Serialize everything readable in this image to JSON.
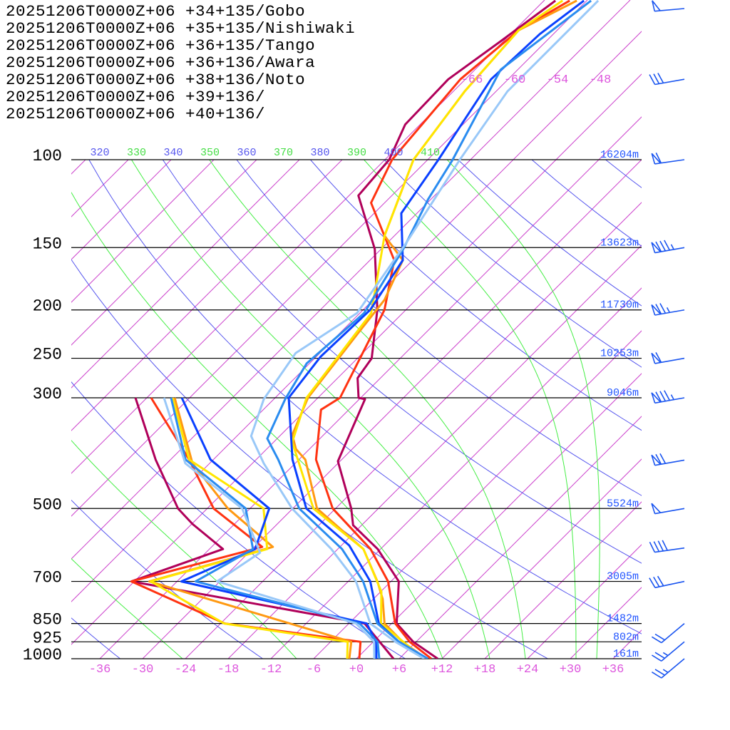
{
  "chart_data": {
    "type": "line",
    "subtype": "skew-T log-p sounding",
    "xlabel": "Temperature (°C)",
    "ylabel": "Pressure (hPa)",
    "xlim": [
      -40,
      40
    ],
    "ylim": [
      1000,
      48
    ],
    "pressure_levels": [
      {
        "p": 100,
        "label": "100",
        "height": "16204m"
      },
      {
        "p": 150,
        "label": "150",
        "height": "13623m"
      },
      {
        "p": 200,
        "label": "200",
        "height": "11730m"
      },
      {
        "p": 250,
        "label": "250",
        "height": "10253m"
      },
      {
        "p": 300,
        "label": "300",
        "height": "9046m"
      },
      {
        "p": 500,
        "label": "500",
        "height": "5524m"
      },
      {
        "p": 700,
        "label": "700",
        "height": "3005m"
      },
      {
        "p": 850,
        "label": "850",
        "height": "1482m"
      },
      {
        "p": 925,
        "label": "925",
        "height": "802m"
      },
      {
        "p": 1000,
        "label": "1000",
        "height": "161m"
      }
    ],
    "x_tick_labels": [
      {
        "t": -36,
        "label": "-36"
      },
      {
        "t": -30,
        "label": "-30"
      },
      {
        "t": -24,
        "label": "-24"
      },
      {
        "t": -18,
        "label": "-18"
      },
      {
        "t": -12,
        "label": "-12"
      },
      {
        "t": -6,
        "label": "-6"
      },
      {
        "t": 0,
        "label": "+0"
      },
      {
        "t": 6,
        "label": "+6"
      },
      {
        "t": 12,
        "label": "+12"
      },
      {
        "t": 18,
        "label": "+18"
      },
      {
        "t": 24,
        "label": "+24"
      },
      {
        "t": 30,
        "label": "+30"
      },
      {
        "t": 36,
        "label": "+36"
      }
    ],
    "isotherm_top_labels": [
      {
        "t": -66,
        "label": "-66"
      },
      {
        "t": -60,
        "label": "-60"
      },
      {
        "t": -54,
        "label": "-54"
      },
      {
        "t": -48,
        "label": "-48"
      }
    ],
    "theta_labels": [
      {
        "label": "320",
        "color": "#5555ee"
      },
      {
        "label": "330",
        "color": "#44dd44"
      },
      {
        "label": "340",
        "color": "#5555ee"
      },
      {
        "label": "350",
        "color": "#44dd44"
      },
      {
        "label": "360",
        "color": "#5555ee"
      },
      {
        "label": "370",
        "color": "#44dd44"
      },
      {
        "label": "380",
        "color": "#5555ee"
      },
      {
        "label": "390",
        "color": "#44dd44"
      },
      {
        "label": "400",
        "color": "#5555ee"
      },
      {
        "label": "410",
        "color": "#44dd44"
      }
    ],
    "dry_adiabats_K": [
      240,
      260,
      280,
      300,
      320,
      340,
      360,
      380,
      400,
      420,
      440,
      460,
      480
    ],
    "moist_adiabat_start_T_1000hPa": [
      -24.4,
      -8.4,
      12.1,
      18.7,
      23.7,
      30.8,
      33.7
    ],
    "colors": {
      "isotherm": "#cc44cc",
      "dry_adiabat": "#5555ee",
      "moist_adiabat": "#44ee44",
      "barb": "#1a55f0"
    },
    "series": [
      {
        "name": "20251206T0000Z+06 +34+135/Gobo",
        "color": "#b0005a",
        "temperature": [
          [
            1000,
            11.4
          ],
          [
            925,
            5.6
          ],
          [
            850,
            0.7
          ],
          [
            700,
            -4.9
          ],
          [
            603,
            -12.4
          ],
          [
            540,
            -19.2
          ],
          [
            500,
            -21.8
          ],
          [
            402,
            -30.3
          ],
          [
            302,
            -35.2
          ],
          [
            300,
            -36.3
          ],
          [
            274,
            -39.2
          ],
          [
            250,
            -40
          ],
          [
            200,
            -46
          ],
          [
            151,
            -54.9
          ],
          [
            118,
            -64.7
          ],
          [
            100,
            -65.4
          ],
          [
            85,
            -68.1
          ],
          [
            69,
            -68.4
          ],
          [
            58,
            -66.4
          ],
          [
            48,
            -64.4
          ]
        ],
        "dewpoint": [
          [
            1000,
            5.2
          ],
          [
            850,
            -3.8
          ],
          [
            700,
            -42.4
          ],
          [
            603,
            -34.1
          ],
          [
            537,
            -41.9
          ],
          [
            500,
            -46.1
          ],
          [
            399,
            -56.1
          ],
          [
            300,
            -67.6
          ]
        ]
      },
      {
        "name": "20251206T0000Z+06 +35+135/Nishiwaki",
        "color": "#ff3311",
        "temperature": [
          [
            1000,
            10.5
          ],
          [
            925,
            5.1
          ],
          [
            850,
            0.5
          ],
          [
            700,
            -6.4
          ],
          [
            603,
            -13.4
          ],
          [
            500,
            -24.4
          ],
          [
            399,
            -33.6
          ],
          [
            317,
            -39.9
          ],
          [
            300,
            -38.9
          ],
          [
            200,
            -45
          ],
          [
            159,
            -50.6
          ],
          [
            122,
            -61.9
          ],
          [
            100,
            -65
          ],
          [
            69,
            -66.7
          ],
          [
            55,
            -65.4
          ],
          [
            48,
            -62.4
          ]
        ],
        "dewpoint": [
          [
            1000,
            0.4
          ],
          [
            925,
            -1.8
          ],
          [
            850,
            -23.4
          ],
          [
            700,
            -42.4
          ],
          [
            597,
            -28.9
          ],
          [
            500,
            -41.1
          ],
          [
            399,
            -51.4
          ],
          [
            300,
            -65.4
          ]
        ]
      },
      {
        "name": "20251206T0000Z+06 +36+135/Tango",
        "color": "#ff9911",
        "temperature": [
          [
            1000,
            9.8
          ],
          [
            925,
            4.1
          ],
          [
            850,
            -1
          ],
          [
            759,
            -4.7
          ],
          [
            700,
            -7.9
          ],
          [
            603,
            -14.4
          ],
          [
            500,
            -26.6
          ],
          [
            399,
            -35.1
          ],
          [
            380,
            -37.9
          ],
          [
            356,
            -40.4
          ],
          [
            300,
            -43.4
          ],
          [
            224,
            -45.4
          ],
          [
            191,
            -46.4
          ],
          [
            159,
            -49.4
          ],
          [
            142,
            -55.4
          ],
          [
            100,
            -62
          ],
          [
            73,
            -64.4
          ],
          [
            55,
            -65.4
          ],
          [
            48,
            -61.4
          ]
        ],
        "dewpoint": [
          [
            1000,
            -1
          ],
          [
            925,
            -3.1
          ],
          [
            700,
            -39.9
          ],
          [
            597,
            -27.4
          ],
          [
            500,
            -39.1
          ],
          [
            406,
            -50.4
          ],
          [
            300,
            -62.1
          ]
        ]
      },
      {
        "name": "20251206T0000Z+06 +36+136/Awara",
        "color": "#ffe600",
        "temperature": [
          [
            1000,
            9.5
          ],
          [
            925,
            4.2
          ],
          [
            850,
            -1.5
          ],
          [
            734,
            -5.9
          ],
          [
            603,
            -14.4
          ],
          [
            500,
            -27.1
          ],
          [
            368,
            -39.4
          ],
          [
            300,
            -43.6
          ],
          [
            203,
            -46.4
          ],
          [
            142,
            -55.4
          ],
          [
            100,
            -62
          ],
          [
            73,
            -64.4
          ],
          [
            55,
            -65.4
          ],
          [
            48,
            -63.4
          ]
        ],
        "dewpoint": [
          [
            1000,
            -1.3
          ],
          [
            925,
            -3.6
          ],
          [
            850,
            -23.5
          ],
          [
            700,
            -39.7
          ],
          [
            603,
            -27.9
          ],
          [
            500,
            -34.1
          ],
          [
            399,
            -51.4
          ],
          [
            300,
            -62.4
          ]
        ]
      },
      {
        "name": "20251206T0000Z+06 +38+136/Noto",
        "color": "#0a40ff",
        "temperature": [
          [
            1000,
            10
          ],
          [
            925,
            3.6
          ],
          [
            850,
            -1.8
          ],
          [
            700,
            -8.9
          ],
          [
            593,
            -16.9
          ],
          [
            500,
            -28.1
          ],
          [
            399,
            -36.9
          ],
          [
            300,
            -46.1
          ],
          [
            248,
            -47.4
          ],
          [
            200,
            -47
          ],
          [
            159,
            -49.4
          ],
          [
            128,
            -56.2
          ],
          [
            100,
            -58.5
          ],
          [
            69,
            -62.4
          ],
          [
            56,
            -61.9
          ],
          [
            48,
            -60.4
          ]
        ],
        "dewpoint": [
          [
            1000,
            2.8
          ],
          [
            925,
            0.4
          ],
          [
            850,
            -3.5
          ],
          [
            700,
            -35.4
          ],
          [
            603,
            -29.6
          ],
          [
            500,
            -33.3
          ],
          [
            399,
            -48.4
          ],
          [
            300,
            -61.1
          ]
        ]
      },
      {
        "name": "20251206T0000Z+06 +39+136/",
        "color": "#2a8cf0",
        "temperature": [
          [
            1000,
            10
          ],
          [
            925,
            3.6
          ],
          [
            850,
            -2
          ],
          [
            700,
            -9.9
          ],
          [
            603,
            -17.4
          ],
          [
            500,
            -29.1
          ],
          [
            399,
            -38.9
          ],
          [
            362,
            -43.4
          ],
          [
            302,
            -46.4
          ],
          [
            256,
            -48.4
          ],
          [
            203,
            -47.4
          ],
          [
            151,
            -50.9
          ],
          [
            120,
            -54.4
          ],
          [
            100,
            -56.5
          ],
          [
            66,
            -62.4
          ],
          [
            48,
            -59.4
          ]
        ],
        "dewpoint": [
          [
            1000,
            3.2
          ],
          [
            925,
            0.6
          ],
          [
            850,
            -4.5
          ],
          [
            700,
            -33.4
          ],
          [
            603,
            -29.9
          ],
          [
            500,
            -36.6
          ],
          [
            399,
            -51.9
          ],
          [
            300,
            -62.6
          ]
        ]
      },
      {
        "name": "20251206T0000Z+06 +40+136/",
        "color": "#99c8f8",
        "temperature": [
          [
            1000,
            9.5
          ],
          [
            925,
            3.1
          ],
          [
            850,
            -3
          ],
          [
            700,
            -10.9
          ],
          [
            603,
            -18.9
          ],
          [
            500,
            -30.1
          ],
          [
            406,
            -40.4
          ],
          [
            358,
            -46
          ],
          [
            302,
            -49.4
          ],
          [
            244,
            -51.4
          ],
          [
            203,
            -48.4
          ],
          [
            146,
            -51.4
          ],
          [
            100,
            -55.5
          ],
          [
            73,
            -58.4
          ],
          [
            48,
            -58.4
          ]
        ],
        "dewpoint": [
          [
            1000,
            2.5
          ],
          [
            925,
            0.1
          ],
          [
            850,
            -5
          ],
          [
            700,
            -30.4
          ],
          [
            613,
            -28.4
          ],
          [
            500,
            -37.1
          ],
          [
            406,
            -51.4
          ],
          [
            300,
            -63.6
          ]
        ]
      }
    ],
    "wind_barbs": [
      {
        "p": 49,
        "dir": 265,
        "speed_kt": 50
      },
      {
        "p": 69,
        "dir": 260,
        "speed_kt": 30
      },
      {
        "p": 100,
        "dir": 262,
        "speed_kt": 60
      },
      {
        "p": 150,
        "dir": 260,
        "speed_kt": 85
      },
      {
        "p": 200,
        "dir": 260,
        "speed_kt": 75
      },
      {
        "p": 250,
        "dir": 260,
        "speed_kt": 60
      },
      {
        "p": 300,
        "dir": 260,
        "speed_kt": 85
      },
      {
        "p": 400,
        "dir": 260,
        "speed_kt": 70
      },
      {
        "p": 500,
        "dir": 260,
        "speed_kt": 50
      },
      {
        "p": 600,
        "dir": 262,
        "speed_kt": 40
      },
      {
        "p": 700,
        "dir": 258,
        "speed_kt": 30
      },
      {
        "p": 850,
        "dir": 230,
        "speed_kt": 20
      },
      {
        "p": 925,
        "dir": 230,
        "speed_kt": 25
      },
      {
        "p": 1000,
        "dir": 230,
        "speed_kt": 25
      }
    ]
  }
}
